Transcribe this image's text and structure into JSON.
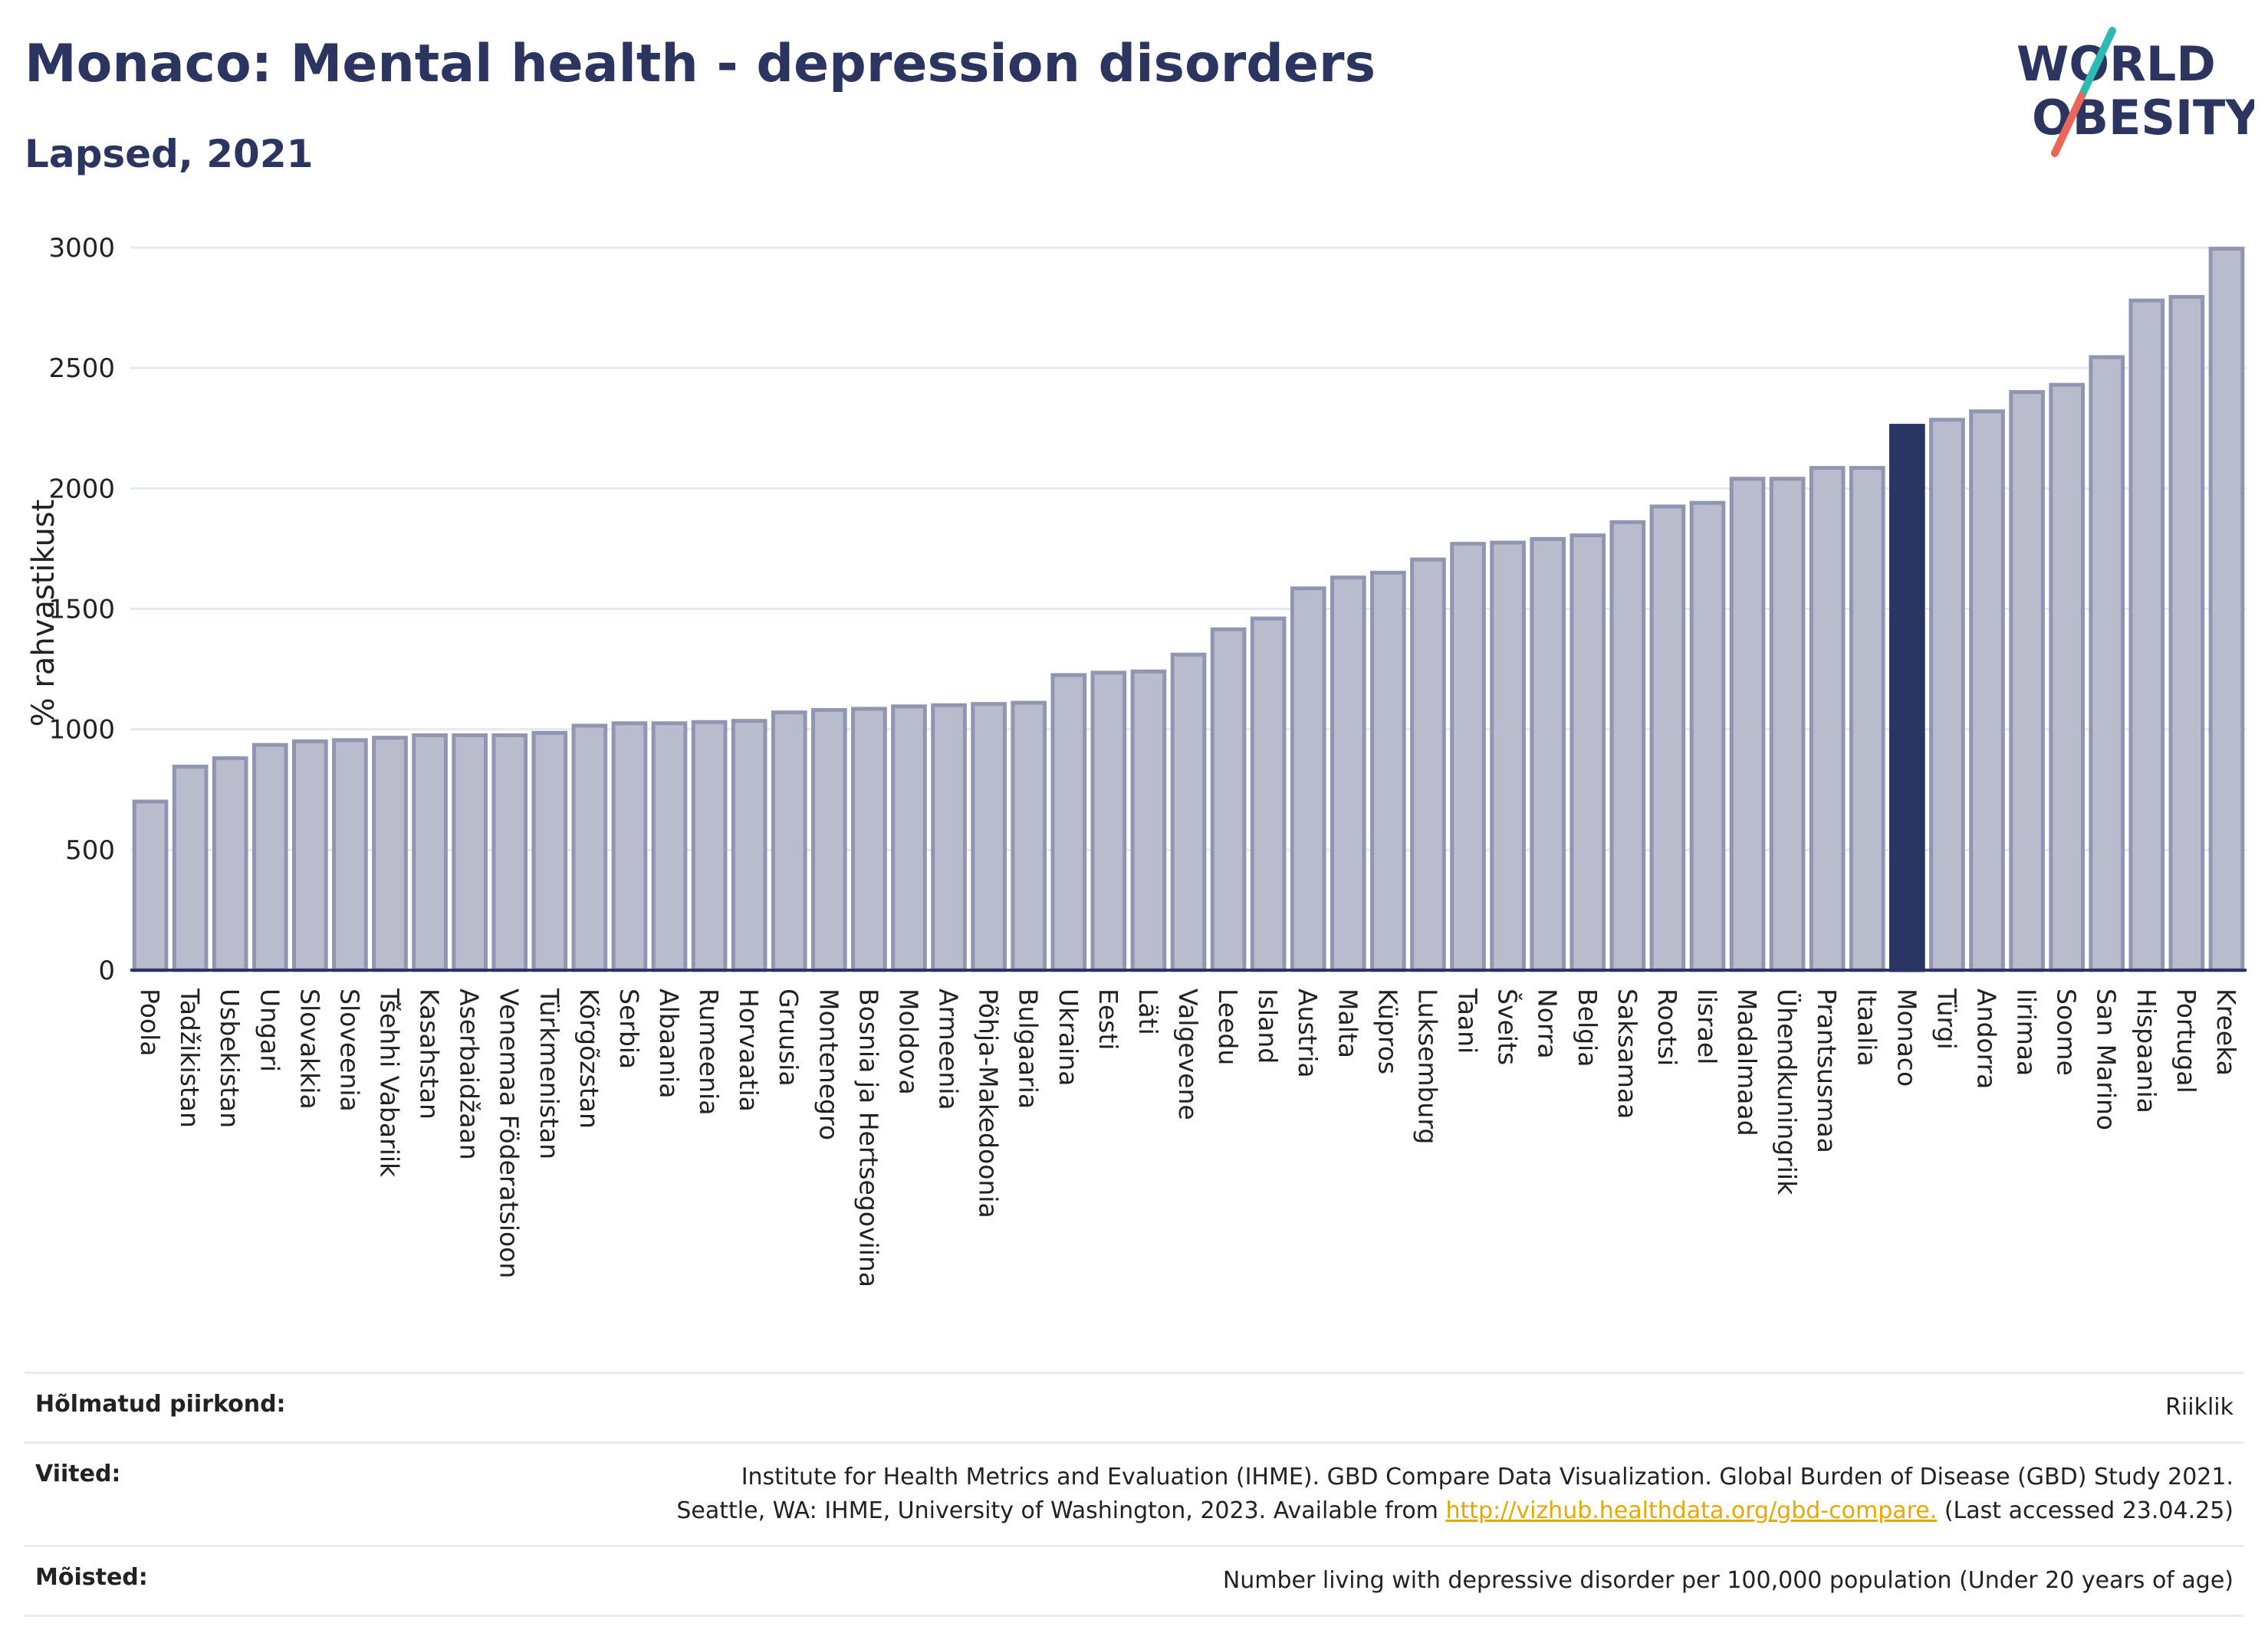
{
  "header": {
    "title": "Monaco: Mental health - depression disorders",
    "subtitle": "Lapsed, 2021"
  },
  "logo": {
    "line1": "WORLD",
    "line2": "OBESITY",
    "accent_teal": "#2fb9b3",
    "accent_red": "#e8675a",
    "text_color": "#2b3560"
  },
  "colors": {
    "bar": "#b8bccd",
    "bar_edge": "#9096b2",
    "highlight": "#283462",
    "grid": "#e6e8ef",
    "axis": "#283462"
  },
  "chart_data": {
    "type": "bar",
    "ylabel": "% rahvastikust",
    "ylim": [
      0,
      3000
    ],
    "yticks": [
      0,
      500,
      1000,
      1500,
      2000,
      2500,
      3000
    ],
    "grid": true,
    "highlight": "Monaco",
    "categories": [
      "Poola",
      "Tadžikistan",
      "Usbekistan",
      "Ungari",
      "Slovakkia",
      "Sloveenia",
      "Tšehhi Vabariik",
      "Kasahstan",
      "Aserbaidžaan",
      "Venemaa Föderatsioon",
      "Türkmenistan",
      "Kõrgõzstan",
      "Serbia",
      "Albaania",
      "Rumeenia",
      "Horvaatia",
      "Gruusia",
      "Montenegro",
      "Bosnia ja Hertsegoviina",
      "Moldova",
      "Armeenia",
      "Põhja-Makedoonia",
      "Bulgaaria",
      "Ukraina",
      "Eesti",
      "Läti",
      "Valgevene",
      "Leedu",
      "Island",
      "Austria",
      "Malta",
      "Küpros",
      "Luksemburg",
      "Taani",
      "Šveits",
      "Norra",
      "Belgia",
      "Saksamaa",
      "Rootsi",
      "Iisrael",
      "Madalmaad",
      "Ühendkuningriik",
      "Prantsusmaa",
      "Itaalia",
      "Monaco",
      "Türgi",
      "Andorra",
      "Iirimaa",
      "Soome",
      "San Marino",
      "Hispaania",
      "Portugal",
      "Kreeka"
    ],
    "values": [
      700,
      845,
      880,
      935,
      950,
      955,
      965,
      975,
      975,
      975,
      985,
      1015,
      1025,
      1025,
      1030,
      1035,
      1070,
      1080,
      1085,
      1095,
      1100,
      1105,
      1110,
      1225,
      1235,
      1240,
      1310,
      1415,
      1460,
      1585,
      1630,
      1650,
      1705,
      1770,
      1775,
      1790,
      1805,
      1860,
      1925,
      1940,
      2040,
      2040,
      2085,
      2085,
      2260,
      2285,
      2320,
      2400,
      2430,
      2545,
      2780,
      2795,
      2995
    ]
  },
  "footer": {
    "rows": [
      {
        "key": "Hõlmatud piirkond:",
        "lines": [
          "Riiklik"
        ]
      },
      {
        "key": "Viited:",
        "lines": [
          "Institute for Health Metrics and Evaluation (IHME). GBD Compare Data Visualization. Global Burden of Disease (GBD) Study 2021.",
          "Seattle, WA: IHME, University of Washington, 2023. Available from "
        ],
        "link": "http://vizhub.healthdata.org/gbd-compare.",
        "after_link": " (Last accessed 23.04.25)"
      },
      {
        "key": "Mõisted:",
        "lines": [
          "Number living with depressive disorder per 100,000 population (Under 20 years of age)"
        ]
      }
    ]
  }
}
